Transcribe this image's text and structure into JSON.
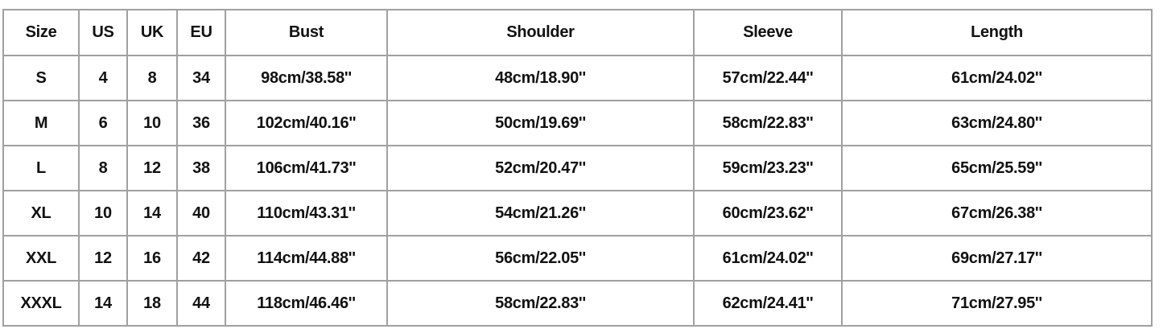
{
  "size_chart": {
    "headers": [
      "Size",
      "US",
      "UK",
      "EU",
      "Bust",
      "Shoulder",
      "Sleeve",
      "Length"
    ],
    "rows": [
      [
        "S",
        "4",
        "8",
        "34",
        "98cm/38.58''",
        "48cm/18.90''",
        "57cm/22.44''",
        "61cm/24.02''"
      ],
      [
        "M",
        "6",
        "10",
        "36",
        "102cm/40.16''",
        "50cm/19.69''",
        "58cm/22.83''",
        "63cm/24.80''"
      ],
      [
        "L",
        "8",
        "12",
        "38",
        "106cm/41.73''",
        "52cm/20.47''",
        "59cm/23.23''",
        "65cm/25.59''"
      ],
      [
        "XL",
        "10",
        "14",
        "40",
        "110cm/43.31''",
        "54cm/21.26''",
        "60cm/23.62''",
        "67cm/26.38''"
      ],
      [
        "XXL",
        "12",
        "16",
        "42",
        "114cm/44.88''",
        "56cm/22.05''",
        "61cm/24.02''",
        "69cm/27.17''"
      ],
      [
        "XXXL",
        "14",
        "18",
        "44",
        "118cm/46.46''",
        "58cm/22.83''",
        "62cm/24.41''",
        "71cm/27.95''"
      ]
    ],
    "border_color": "#a0a0a0",
    "text_color": "#111111"
  }
}
